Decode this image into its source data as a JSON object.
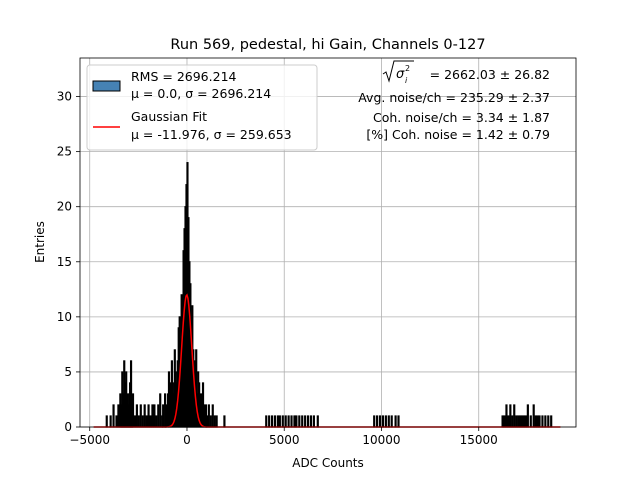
{
  "chart_data": {
    "type": "histogram",
    "title": "Run 569, pedestal, hi Gain, Channels 0-127",
    "xlabel": "ADC Counts",
    "ylabel": "Entries",
    "xlim": [
      -5500,
      20000
    ],
    "ylim": [
      0,
      33.5
    ],
    "xticks": [
      -5000,
      0,
      5000,
      10000,
      15000
    ],
    "yticks": [
      0,
      5,
      10,
      15,
      20,
      25,
      30
    ],
    "grid": true,
    "legend_position": "top-left",
    "legend": [
      {
        "label_line1": "RMS = 2696.214",
        "label_line2": "μ = 0.0, σ = 2696.214",
        "kind": "patch",
        "color": "#4682b4"
      },
      {
        "label_line1": "Gaussian Fit",
        "label_line2": "μ = -11.976, σ = 259.653",
        "kind": "line",
        "color": "#ff0000"
      }
    ],
    "annotations": {
      "sigma_label": "= 2662.03 ± 26.82",
      "avg_noise": "Avg. noise/ch = 235.29 ± 2.37",
      "coh_noise": "Coh. noise/ch = 3.34 ± 1.87",
      "coh_percent": "[%] Coh. noise = 1.42 ± 0.79"
    },
    "gaussian_fit": {
      "mu": -11.976,
      "sigma": 259.653,
      "amplitude": 12
    },
    "histogram": {
      "bin_width": 50,
      "bins": [
        [
          -4150,
          1
        ],
        [
          -3950,
          1
        ],
        [
          -3800,
          2
        ],
        [
          -3650,
          1
        ],
        [
          -3550,
          2
        ],
        [
          -3450,
          3
        ],
        [
          -3400,
          2
        ],
        [
          -3350,
          5
        ],
        [
          -3300,
          3
        ],
        [
          -3250,
          6
        ],
        [
          -3200,
          4
        ],
        [
          -3150,
          5
        ],
        [
          -3100,
          3
        ],
        [
          -3050,
          2
        ],
        [
          -3000,
          3
        ],
        [
          -2950,
          4
        ],
        [
          -2900,
          6
        ],
        [
          -2850,
          2
        ],
        [
          -2800,
          3
        ],
        [
          -2700,
          1
        ],
        [
          -2600,
          2
        ],
        [
          -2500,
          1
        ],
        [
          -2400,
          2
        ],
        [
          -2300,
          1
        ],
        [
          -2200,
          2
        ],
        [
          -2100,
          1
        ],
        [
          -2000,
          2
        ],
        [
          -1900,
          1
        ],
        [
          -1800,
          2
        ],
        [
          -1700,
          2
        ],
        [
          -1600,
          1
        ],
        [
          -1500,
          2
        ],
        [
          -1400,
          3
        ],
        [
          -1300,
          1
        ],
        [
          -1250,
          2
        ],
        [
          -1150,
          3
        ],
        [
          -1100,
          2
        ],
        [
          -1000,
          3
        ],
        [
          -950,
          5
        ],
        [
          -900,
          4
        ],
        [
          -850,
          3
        ],
        [
          -800,
          6
        ],
        [
          -750,
          4
        ],
        [
          -700,
          3
        ],
        [
          -650,
          7
        ],
        [
          -600,
          5
        ],
        [
          -550,
          4
        ],
        [
          -500,
          6
        ],
        [
          -450,
          9
        ],
        [
          -400,
          10
        ],
        [
          -350,
          8
        ],
        [
          -300,
          12
        ],
        [
          -250,
          11
        ],
        [
          -200,
          16
        ],
        [
          -150,
          18
        ],
        [
          -100,
          20
        ],
        [
          -50,
          22
        ],
        [
          0,
          24
        ],
        [
          50,
          19
        ],
        [
          100,
          15
        ],
        [
          150,
          13
        ],
        [
          200,
          9
        ],
        [
          250,
          11
        ],
        [
          300,
          7
        ],
        [
          350,
          5
        ],
        [
          400,
          6
        ],
        [
          450,
          7
        ],
        [
          500,
          3
        ],
        [
          550,
          5
        ],
        [
          600,
          4
        ],
        [
          650,
          2
        ],
        [
          700,
          3
        ],
        [
          750,
          2
        ],
        [
          800,
          4
        ],
        [
          850,
          2
        ],
        [
          900,
          1
        ],
        [
          950,
          2
        ],
        [
          1000,
          1
        ],
        [
          1100,
          2
        ],
        [
          1200,
          1
        ],
        [
          1300,
          2
        ],
        [
          1400,
          1
        ],
        [
          1500,
          1
        ],
        [
          1900,
          1
        ],
        [
          4050,
          1
        ],
        [
          4200,
          1
        ],
        [
          4350,
          1
        ],
        [
          4500,
          1
        ],
        [
          4650,
          1
        ],
        [
          4750,
          1
        ],
        [
          4900,
          1
        ],
        [
          5050,
          1
        ],
        [
          5200,
          1
        ],
        [
          5350,
          1
        ],
        [
          5500,
          1
        ],
        [
          5600,
          1
        ],
        [
          5750,
          1
        ],
        [
          5900,
          1
        ],
        [
          6050,
          1
        ],
        [
          6200,
          1
        ],
        [
          6350,
          1
        ],
        [
          6500,
          1
        ],
        [
          6700,
          1
        ],
        [
          9600,
          1
        ],
        [
          9750,
          1
        ],
        [
          9900,
          1
        ],
        [
          10050,
          1
        ],
        [
          10200,
          1
        ],
        [
          10350,
          1
        ],
        [
          10500,
          1
        ],
        [
          10700,
          1
        ],
        [
          10850,
          1
        ],
        [
          16200,
          1
        ],
        [
          16300,
          1
        ],
        [
          16400,
          2
        ],
        [
          16500,
          1
        ],
        [
          16600,
          2
        ],
        [
          16700,
          1
        ],
        [
          16800,
          2
        ],
        [
          16900,
          1
        ],
        [
          17000,
          1
        ],
        [
          17100,
          1
        ],
        [
          17200,
          1
        ],
        [
          17300,
          1
        ],
        [
          17400,
          1
        ],
        [
          17500,
          2
        ],
        [
          17650,
          1
        ],
        [
          17800,
          2
        ],
        [
          17900,
          1
        ],
        [
          18000,
          1
        ],
        [
          18100,
          1
        ],
        [
          18250,
          1
        ],
        [
          18400,
          1
        ],
        [
          18550,
          1
        ],
        [
          18700,
          1
        ]
      ]
    }
  }
}
